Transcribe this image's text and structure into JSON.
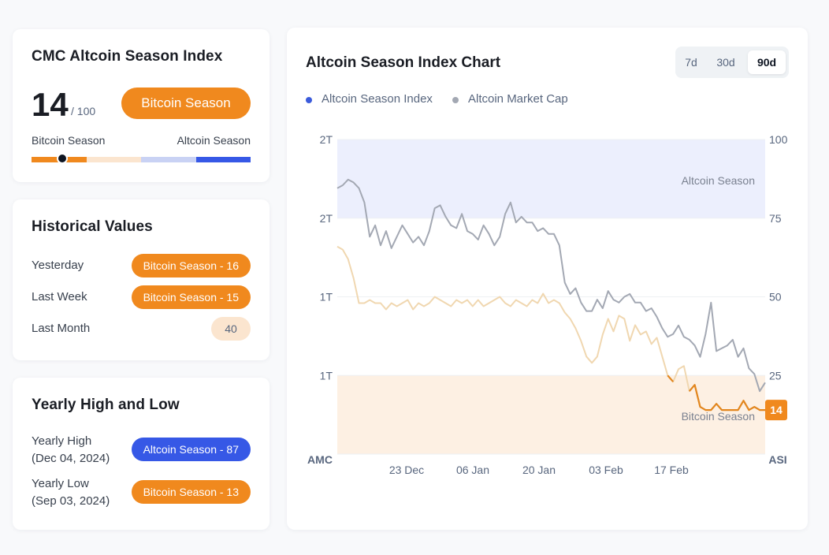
{
  "index_card": {
    "title": "CMC Altcoin Season Index",
    "score": "14",
    "score_max": "/ 100",
    "season_label": "Bitcoin Season",
    "scale_left": "Bitcoin Season",
    "scale_right": "Altcoin Season",
    "indicator_value": 14,
    "colors": {
      "orange": "#f0891e",
      "light_orange": "#fbe5cf",
      "light_blue": "#c9d2f4",
      "blue": "#3658e6"
    }
  },
  "historical": {
    "title": "Historical Values",
    "rows": [
      {
        "label": "Yesterday",
        "value": "Bitcoin Season - 16",
        "tone": "orange"
      },
      {
        "label": "Last Week",
        "value": "Bitcoin Season - 15",
        "tone": "orange"
      },
      {
        "label": "Last Month",
        "value": "40",
        "tone": "light"
      }
    ]
  },
  "yearly": {
    "title": "Yearly High and Low",
    "high_label": "Yearly High",
    "high_date": "(Dec 04, 2024)",
    "high_value": "Altcoin Season - 87",
    "low_label": "Yearly Low",
    "low_date": "(Sep 03, 2024)",
    "low_value": "Bitcoin Season - 13"
  },
  "chart_panel": {
    "title": "Altcoin Season Index Chart",
    "timeframes": [
      {
        "label": "7d",
        "active": false
      },
      {
        "label": "30d",
        "active": false
      },
      {
        "label": "90d",
        "active": true
      }
    ],
    "legend": [
      {
        "label": "Altcoin Season Index",
        "color": "#3b5bdb"
      },
      {
        "label": "Altcoin Market Cap",
        "color": "#a3a8b3"
      }
    ]
  },
  "chart_data": {
    "type": "line",
    "left_axis_ticks": [
      "2T",
      "2T",
      "1T",
      "1T"
    ],
    "left_axis_label": "AMC",
    "right_axis_ticks": [
      100,
      75,
      50,
      25
    ],
    "right_axis_label": "ASI",
    "x_ticks": [
      "23 Dec",
      "06 Jan",
      "20 Jan",
      "03 Feb",
      "17 Feb"
    ],
    "ylim_right": [
      0,
      100
    ],
    "band_labels": {
      "altcoin": "Altcoin Season",
      "bitcoin": "Bitcoin Season"
    },
    "bands": {
      "altcoin_min": 75,
      "bitcoin_max": 25
    },
    "current_value": "14",
    "series": [
      {
        "name": "Altcoin Season Index",
        "values": [
          66,
          65,
          62,
          56,
          48,
          48,
          49,
          48,
          48,
          46,
          48,
          47,
          48,
          49,
          46,
          48,
          47,
          48,
          50,
          49,
          48,
          47,
          49,
          48,
          49,
          47,
          49,
          47,
          48,
          49,
          50,
          48,
          47,
          49,
          48,
          47,
          49,
          48,
          51,
          48,
          49,
          48,
          45,
          43,
          40,
          36,
          31,
          29,
          31,
          38,
          43,
          39,
          44,
          43,
          36,
          41,
          38,
          39,
          35,
          37,
          31,
          25,
          23,
          27,
          28,
          20,
          22,
          15,
          14,
          14,
          16,
          14,
          14,
          14,
          14,
          17,
          14,
          15,
          14,
          14
        ]
      },
      {
        "name": "Altcoin Market Cap",
        "values": [
          1.93,
          1.94,
          1.96,
          1.95,
          1.93,
          1.88,
          1.76,
          1.8,
          1.73,
          1.78,
          1.72,
          1.76,
          1.8,
          1.77,
          1.74,
          1.76,
          1.73,
          1.78,
          1.86,
          1.87,
          1.83,
          1.8,
          1.79,
          1.84,
          1.78,
          1.77,
          1.75,
          1.8,
          1.77,
          1.73,
          1.76,
          1.84,
          1.88,
          1.81,
          1.83,
          1.81,
          1.81,
          1.78,
          1.79,
          1.77,
          1.77,
          1.73,
          1.6,
          1.56,
          1.58,
          1.53,
          1.5,
          1.5,
          1.54,
          1.51,
          1.57,
          1.54,
          1.53,
          1.55,
          1.56,
          1.53,
          1.53,
          1.5,
          1.51,
          1.48,
          1.44,
          1.41,
          1.42,
          1.45,
          1.41,
          1.4,
          1.38,
          1.34,
          1.42,
          1.53,
          1.36,
          1.37,
          1.38,
          1.4,
          1.34,
          1.37,
          1.3,
          1.28,
          1.22,
          1.25
        ]
      }
    ]
  }
}
